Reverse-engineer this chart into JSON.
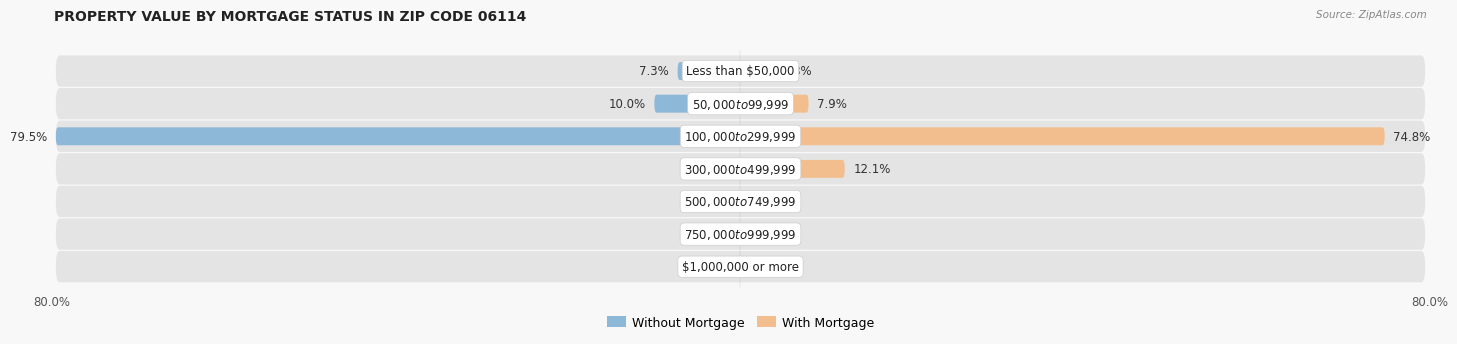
{
  "title": "PROPERTY VALUE BY MORTGAGE STATUS IN ZIP CODE 06114",
  "source": "Source: ZipAtlas.com",
  "categories": [
    "Less than $50,000",
    "$50,000 to $99,999",
    "$100,000 to $299,999",
    "$300,000 to $499,999",
    "$500,000 to $749,999",
    "$750,000 to $999,999",
    "$1,000,000 or more"
  ],
  "without_mortgage": [
    7.3,
    10.0,
    79.5,
    1.0,
    2.2,
    0.0,
    0.0
  ],
  "with_mortgage": [
    3.8,
    7.9,
    74.8,
    12.1,
    0.0,
    1.4,
    0.08
  ],
  "color_without": "#8eb8d8",
  "color_with": "#f2be8e",
  "axis_min": -80.0,
  "axis_max": 80.0,
  "background_row_even": "#e8e8e8",
  "background_row_odd": "#f0f0f0",
  "background_fig": "#f8f8f8",
  "label_fontsize": 8.5,
  "value_fontsize": 8.5,
  "title_fontsize": 10,
  "source_fontsize": 7.5
}
